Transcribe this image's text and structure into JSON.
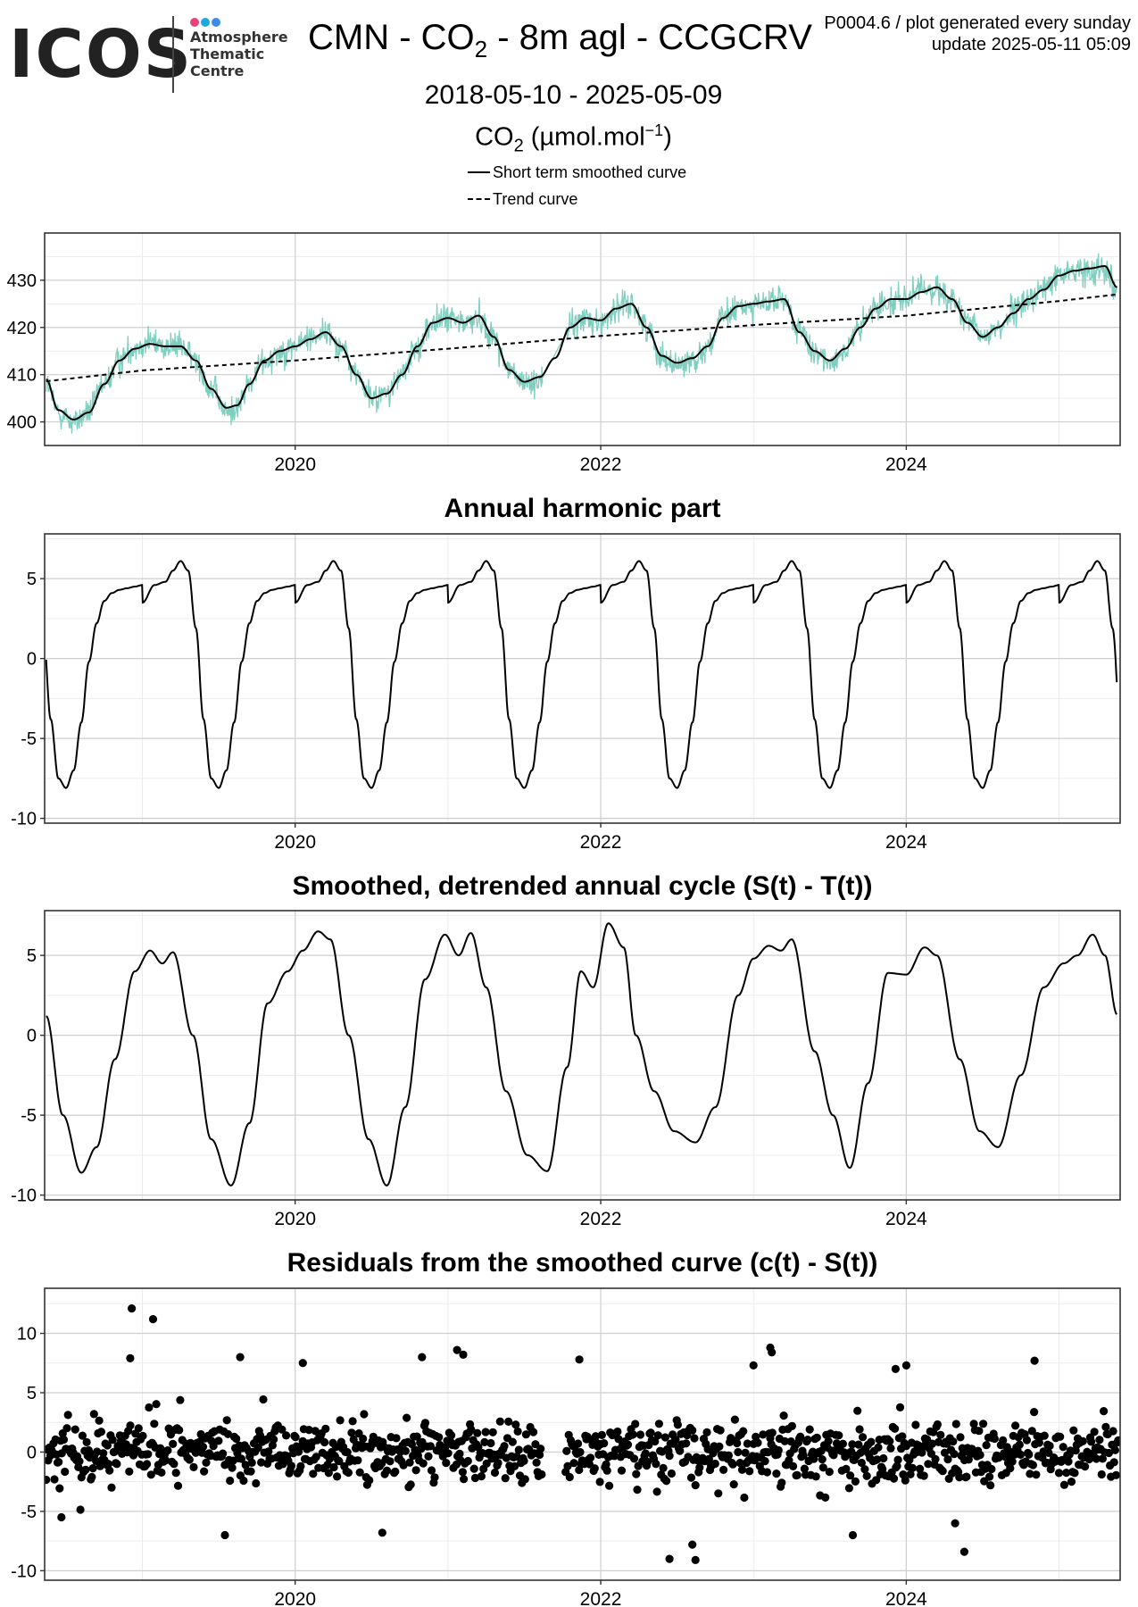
{
  "header": {
    "logo": {
      "word": "ICOS",
      "line1": "Atmosphere",
      "line2": "Thematic",
      "line3": "Centre",
      "dot_colors": [
        "#e8427c",
        "#1fa7e0",
        "#3c8be6"
      ]
    },
    "title_prefix": "CMN - CO",
    "title_sub": "2",
    "title_suffix": " - 8m agl - CCGCRV",
    "date_range": "2018-05-10 - 2025-05-09",
    "ylabel_prefix": "CO",
    "ylabel_sub": "2",
    "ylabel_mid": " (µmol.mol",
    "ylabel_sup": "−1",
    "ylabel_suffix": ")",
    "plot_id": "P0004.6 / plot generated every sunday",
    "update": "update  2025-05-11 05:09"
  },
  "legend": {
    "items": [
      {
        "label": "Short term smoothed curve",
        "style": "solid"
      },
      {
        "label": "Trend curve",
        "style": "dashed"
      }
    ]
  },
  "colors": {
    "raw": "#7fcfc0",
    "line": "#000000",
    "grid_major": "#cfcfcf",
    "grid_minor": "#ececec",
    "frame": "#333333"
  },
  "chart_data": [
    {
      "id": "co2",
      "type": "line",
      "title": "",
      "xlim": [
        2018.36,
        2025.4
      ],
      "ylim": [
        395,
        440
      ],
      "x_ticks": [
        2020,
        2022,
        2024
      ],
      "x_tick_labels": [
        "2020",
        "2022",
        "2024"
      ],
      "y_ticks": [
        400,
        410,
        420,
        430
      ],
      "y_tick_labels": [
        "400",
        "410",
        "420",
        "430"
      ],
      "series": [
        {
          "name": "",
          "style": "raw-noisy",
          "x": [
            2018.37,
            2018.45,
            2018.55,
            2018.65,
            2018.75,
            2018.85,
            2018.95,
            2019.05,
            2019.15,
            2019.25,
            2019.35,
            2019.45,
            2019.55,
            2019.62,
            2019.7,
            2019.8,
            2019.9,
            2020.0,
            2020.1,
            2020.2,
            2020.3,
            2020.4,
            2020.5,
            2020.6,
            2020.7,
            2020.8,
            2020.9,
            2021.0,
            2021.1,
            2021.2,
            2021.3,
            2021.4,
            2021.5,
            2021.6,
            2021.7,
            2021.8,
            2021.9,
            2022.0,
            2022.1,
            2022.2,
            2022.3,
            2022.4,
            2022.5,
            2022.6,
            2022.7,
            2022.8,
            2022.9,
            2023.0,
            2023.1,
            2023.2,
            2023.3,
            2023.4,
            2023.5,
            2023.6,
            2023.7,
            2023.8,
            2023.9,
            2024.0,
            2024.1,
            2024.2,
            2024.3,
            2024.4,
            2024.5,
            2024.6,
            2024.7,
            2024.8,
            2024.9,
            2025.0,
            2025.1,
            2025.2,
            2025.3,
            2025.38
          ],
          "y": [
            408,
            402,
            400,
            402,
            408,
            413,
            416,
            417,
            416,
            416,
            413,
            407,
            402,
            403,
            408,
            413,
            415,
            416,
            418,
            419,
            416,
            410,
            405,
            406,
            410,
            416,
            421,
            422,
            421,
            422,
            418,
            411,
            408,
            409,
            413,
            420,
            422,
            421,
            424,
            425,
            420,
            414,
            412,
            413,
            416,
            422,
            424,
            425,
            425,
            426,
            419,
            414,
            413,
            415,
            420,
            424,
            426,
            426,
            428,
            428,
            426,
            421,
            418,
            420,
            423,
            426,
            428,
            431,
            432,
            432,
            433,
            428
          ]
        },
        {
          "name": "Short term smoothed curve",
          "style": "solid",
          "x": [
            2018.37,
            2018.45,
            2018.55,
            2018.65,
            2018.75,
            2018.85,
            2018.95,
            2019.05,
            2019.15,
            2019.25,
            2019.35,
            2019.45,
            2019.55,
            2019.62,
            2019.7,
            2019.8,
            2019.9,
            2020.0,
            2020.1,
            2020.2,
            2020.3,
            2020.4,
            2020.5,
            2020.6,
            2020.7,
            2020.8,
            2020.9,
            2021.0,
            2021.1,
            2021.2,
            2021.3,
            2021.4,
            2021.5,
            2021.6,
            2021.7,
            2021.8,
            2021.9,
            2022.0,
            2022.1,
            2022.2,
            2022.3,
            2022.4,
            2022.5,
            2022.6,
            2022.7,
            2022.8,
            2022.9,
            2023.0,
            2023.1,
            2023.2,
            2023.3,
            2023.4,
            2023.5,
            2023.6,
            2023.7,
            2023.8,
            2023.9,
            2024.0,
            2024.1,
            2024.2,
            2024.3,
            2024.4,
            2024.5,
            2024.6,
            2024.7,
            2024.8,
            2024.9,
            2025.0,
            2025.1,
            2025.2,
            2025.3,
            2025.38
          ],
          "y": [
            409,
            402.5,
            400.5,
            402,
            408,
            413,
            415.5,
            416.5,
            416,
            416,
            413,
            407,
            403,
            403.5,
            408,
            413,
            415,
            416,
            417.5,
            419,
            416,
            410,
            405,
            406,
            410,
            416,
            421,
            422,
            421,
            422.5,
            418,
            411,
            408.5,
            409.5,
            413.5,
            420,
            422,
            421.5,
            424,
            425,
            420,
            414,
            412.5,
            413.5,
            416,
            422,
            424.5,
            425,
            425.5,
            426,
            419,
            415,
            413,
            415.5,
            420,
            424,
            426,
            426,
            427.5,
            428.5,
            426,
            421,
            418,
            420,
            423,
            426,
            428,
            431,
            432,
            432.5,
            433,
            428.5
          ]
        },
        {
          "name": "Trend curve",
          "style": "dashed",
          "x": [
            2018.37,
            2019.0,
            2020.0,
            2021.0,
            2022.0,
            2023.0,
            2024.0,
            2025.0,
            2025.38
          ],
          "y": [
            408.6,
            410.9,
            413.0,
            415.5,
            418.2,
            420.5,
            422.5,
            425.6,
            427.0
          ]
        }
      ]
    },
    {
      "id": "harmonic",
      "type": "line",
      "title": "Annual harmonic part",
      "xlim": [
        2018.36,
        2025.4
      ],
      "ylim": [
        -10.3,
        7.8
      ],
      "x_ticks": [
        2020,
        2022,
        2024
      ],
      "x_tick_labels": [
        "2020",
        "2022",
        "2024"
      ],
      "y_ticks": [
        -10,
        -5,
        0,
        5
      ],
      "y_tick_labels": [
        "-10",
        "-5",
        "0",
        "5"
      ],
      "series": [
        {
          "name": "",
          "style": "solid",
          "periodic": {
            "start": 2018.37,
            "end": 2025.38,
            "phase_ref": 2018.0,
            "phase": [
              0.0,
              0.08,
              0.15,
              0.2,
              0.25,
              0.3,
              0.35,
              0.4,
              0.45,
              0.5,
              0.55,
              0.6,
              0.65,
              0.7,
              0.75,
              0.8,
              0.85,
              0.9,
              0.95,
              1.0
            ],
            "values": [
              3.5,
              4.6,
              4.8,
              5.5,
              6.1,
              5.5,
              1.9,
              -3.8,
              -7.5,
              -8.1,
              -7.0,
              -4.0,
              -0.2,
              2.2,
              3.6,
              4.1,
              4.3,
              4.4,
              4.5,
              4.6
            ]
          }
        }
      ]
    },
    {
      "id": "detrended",
      "type": "line",
      "title": "Smoothed, detrended annual cycle (S(t) - T(t))",
      "xlim": [
        2018.36,
        2025.4
      ],
      "ylim": [
        -10.3,
        7.8
      ],
      "x_ticks": [
        2020,
        2022,
        2024
      ],
      "x_tick_labels": [
        "2020",
        "2022",
        "2024"
      ],
      "y_ticks": [
        -10,
        -5,
        0,
        5
      ],
      "y_tick_labels": [
        "-10",
        "-5",
        "0",
        "5"
      ],
      "series": [
        {
          "name": "",
          "style": "solid",
          "x": [
            2018.37,
            2018.48,
            2018.6,
            2018.7,
            2018.82,
            2018.95,
            2019.05,
            2019.13,
            2019.2,
            2019.33,
            2019.45,
            2019.58,
            2019.7,
            2019.82,
            2019.95,
            2020.05,
            2020.15,
            2020.23,
            2020.35,
            2020.48,
            2020.6,
            2020.72,
            2020.85,
            2020.98,
            2021.07,
            2021.15,
            2021.25,
            2021.38,
            2021.52,
            2021.65,
            2021.78,
            2021.87,
            2021.95,
            2022.05,
            2022.15,
            2022.23,
            2022.35,
            2022.48,
            2022.62,
            2022.75,
            2022.9,
            2023.0,
            2023.1,
            2023.18,
            2023.25,
            2023.4,
            2023.52,
            2023.63,
            2023.75,
            2023.88,
            2024.0,
            2024.12,
            2024.2,
            2024.35,
            2024.48,
            2024.6,
            2024.75,
            2024.9,
            2025.03,
            2025.12,
            2025.22,
            2025.3,
            2025.38
          ],
          "y": [
            1.2,
            -5.0,
            -8.6,
            -7.0,
            -1.5,
            4.0,
            5.3,
            4.5,
            5.2,
            0.0,
            -6.5,
            -9.4,
            -5.5,
            2.0,
            4.0,
            5.3,
            6.5,
            6.0,
            0.0,
            -6.5,
            -9.4,
            -4.5,
            3.5,
            6.3,
            5.0,
            6.4,
            3.0,
            -3.5,
            -7.5,
            -8.5,
            -2.0,
            4.0,
            3.0,
            7.0,
            5.5,
            0.0,
            -3.5,
            -6.0,
            -6.7,
            -4.5,
            2.5,
            4.8,
            5.6,
            5.3,
            6.0,
            -1.0,
            -5.0,
            -8.3,
            -3.0,
            3.9,
            3.8,
            5.5,
            5.0,
            -1.5,
            -6.0,
            -7.0,
            -2.5,
            3.0,
            4.5,
            5.0,
            6.3,
            5.0,
            1.3
          ]
        }
      ]
    },
    {
      "id": "residuals",
      "type": "scatter",
      "title": "Residuals from the smoothed curve (c(t) - S(t))",
      "xlim": [
        2018.36,
        2025.4
      ],
      "ylim": [
        -10.8,
        13.8
      ],
      "x_ticks": [
        2020,
        2022,
        2024
      ],
      "x_tick_labels": [
        "2020",
        "2022",
        "2024"
      ],
      "y_ticks": [
        -10,
        -5,
        0,
        5,
        10
      ],
      "y_tick_labels": [
        "-10",
        "-5",
        "0",
        "5",
        "10"
      ],
      "data_gap": [
        2021.62,
        2021.77
      ],
      "typical_spread": 1.8,
      "outliers": [
        {
          "x": 2018.93,
          "y": 12.1
        },
        {
          "x": 2019.07,
          "y": 11.2
        },
        {
          "x": 2018.92,
          "y": 7.9
        },
        {
          "x": 2019.64,
          "y": 8.0
        },
        {
          "x": 2020.05,
          "y": 7.5
        },
        {
          "x": 2020.83,
          "y": 8.0
        },
        {
          "x": 2021.06,
          "y": 8.6
        },
        {
          "x": 2021.1,
          "y": 8.2
        },
        {
          "x": 2021.86,
          "y": 7.8
        },
        {
          "x": 2023.11,
          "y": 8.8
        },
        {
          "x": 2023.12,
          "y": 8.4
        },
        {
          "x": 2023.0,
          "y": 7.3
        },
        {
          "x": 2024.0,
          "y": 7.3
        },
        {
          "x": 2023.93,
          "y": 7.0
        },
        {
          "x": 2024.84,
          "y": 7.7
        },
        {
          "x": 2019.54,
          "y": -7.0
        },
        {
          "x": 2020.57,
          "y": -6.8
        },
        {
          "x": 2022.45,
          "y": -9.0
        },
        {
          "x": 2022.62,
          "y": -9.1
        },
        {
          "x": 2022.6,
          "y": -7.8
        },
        {
          "x": 2024.38,
          "y": -8.4
        },
        {
          "x": 2023.65,
          "y": -7.0
        },
        {
          "x": 2024.32,
          "y": -6.0
        },
        {
          "x": 2018.47,
          "y": -5.5
        }
      ]
    }
  ]
}
